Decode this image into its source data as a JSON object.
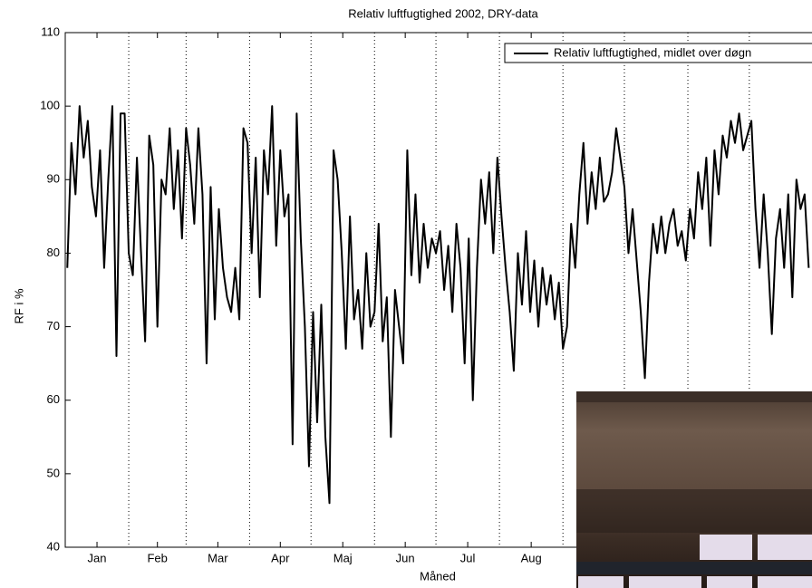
{
  "chart_data": {
    "type": "line",
    "title": "Relativ luftfugtighed 2002, DRY-data",
    "xlabel": "Måned",
    "ylabel": "RF i %",
    "xlim": [
      0,
      365
    ],
    "ylim": [
      40,
      110
    ],
    "yticks": [
      40,
      50,
      60,
      70,
      80,
      90,
      100,
      110
    ],
    "xticks": [
      {
        "value": 15.5,
        "label": "Jan"
      },
      {
        "value": 45,
        "label": "Feb"
      },
      {
        "value": 74.5,
        "label": "Mar"
      },
      {
        "value": 105,
        "label": "Apr"
      },
      {
        "value": 135.5,
        "label": "Maj"
      },
      {
        "value": 166,
        "label": "Jun"
      },
      {
        "value": 196.5,
        "label": "Jul"
      },
      {
        "value": 227.5,
        "label": "Aug"
      }
    ],
    "month_lines": [
      31,
      59,
      90,
      120,
      151,
      181,
      212,
      243,
      273,
      304,
      334
    ],
    "legend": "upper right",
    "x": [
      1,
      3,
      5,
      7,
      9,
      11,
      13,
      15,
      17,
      19,
      21,
      23,
      25,
      27,
      29,
      31,
      33,
      35,
      37,
      39,
      41,
      43,
      45,
      47,
      49,
      51,
      53,
      55,
      57,
      59,
      61,
      63,
      65,
      67,
      69,
      71,
      73,
      75,
      77,
      79,
      81,
      83,
      85,
      87,
      89,
      91,
      93,
      95,
      97,
      99,
      101,
      103,
      105,
      107,
      109,
      111,
      113,
      115,
      117,
      119,
      121,
      123,
      125,
      127,
      129,
      131,
      133,
      135,
      137,
      139,
      141,
      143,
      145,
      147,
      149,
      151,
      153,
      155,
      157,
      159,
      161,
      163,
      165,
      167,
      169,
      171,
      173,
      175,
      177,
      179,
      181,
      183,
      185,
      187,
      189,
      191,
      193,
      195,
      197,
      199,
      201,
      203,
      205,
      207,
      209,
      211,
      213,
      215,
      217,
      219,
      221,
      223,
      225,
      227,
      229,
      231,
      233,
      235,
      237,
      239,
      241,
      243,
      245,
      247,
      249,
      251,
      253,
      255,
      257,
      259,
      261,
      263,
      265,
      267,
      269,
      271,
      273,
      275,
      277,
      279,
      281,
      283,
      285,
      287,
      289,
      291,
      293,
      295,
      297,
      299,
      301,
      303,
      305,
      307,
      309,
      311,
      313,
      315,
      317,
      319,
      321,
      323,
      325,
      327,
      329,
      331,
      333,
      335,
      337,
      339,
      341,
      343,
      345,
      347,
      349,
      351,
      353,
      355,
      357,
      359,
      361,
      363
    ],
    "series": [
      {
        "name": "Relativ luftfugtighed, midlet over døgn",
        "color": "#000000",
        "values": [
          78,
          95,
          88,
          100,
          93,
          98,
          89,
          85,
          94,
          78,
          90,
          100,
          66,
          99,
          99,
          80,
          77,
          93,
          80,
          68,
          96,
          92,
          70,
          90,
          88,
          97,
          86,
          94,
          82,
          97,
          92,
          84,
          97,
          88,
          65,
          89,
          71,
          86,
          78,
          74,
          72,
          78,
          71,
          97,
          95,
          80,
          93,
          74,
          94,
          88,
          100,
          81,
          94,
          85,
          88,
          54,
          99,
          82,
          70,
          51,
          72,
          57,
          73,
          55,
          46,
          94,
          90,
          80,
          67,
          85,
          71,
          75,
          67,
          80,
          70,
          72,
          84,
          68,
          74,
          55,
          75,
          70,
          65,
          94,
          77,
          88,
          76,
          84,
          78,
          82,
          80,
          83,
          75,
          81,
          72,
          84,
          78,
          65,
          82,
          60,
          78,
          90,
          84,
          91,
          80,
          93,
          85,
          78,
          72,
          64,
          80,
          73,
          83,
          72,
          79,
          70,
          78,
          73,
          77,
          71,
          76,
          67,
          70,
          84,
          78,
          88,
          95,
          84,
          91,
          86,
          93,
          87,
          88,
          91,
          97,
          93,
          89,
          80,
          86,
          79,
          72,
          63,
          76,
          84,
          80,
          85,
          80,
          84,
          86,
          81,
          83,
          79,
          86,
          82,
          91,
          86,
          93,
          81,
          94,
          88,
          96,
          93,
          98,
          95,
          99,
          94,
          96,
          98,
          86,
          78,
          88,
          80,
          69,
          82,
          86,
          78,
          88,
          74,
          90,
          86,
          88,
          78
        ]
      }
    ]
  }
}
